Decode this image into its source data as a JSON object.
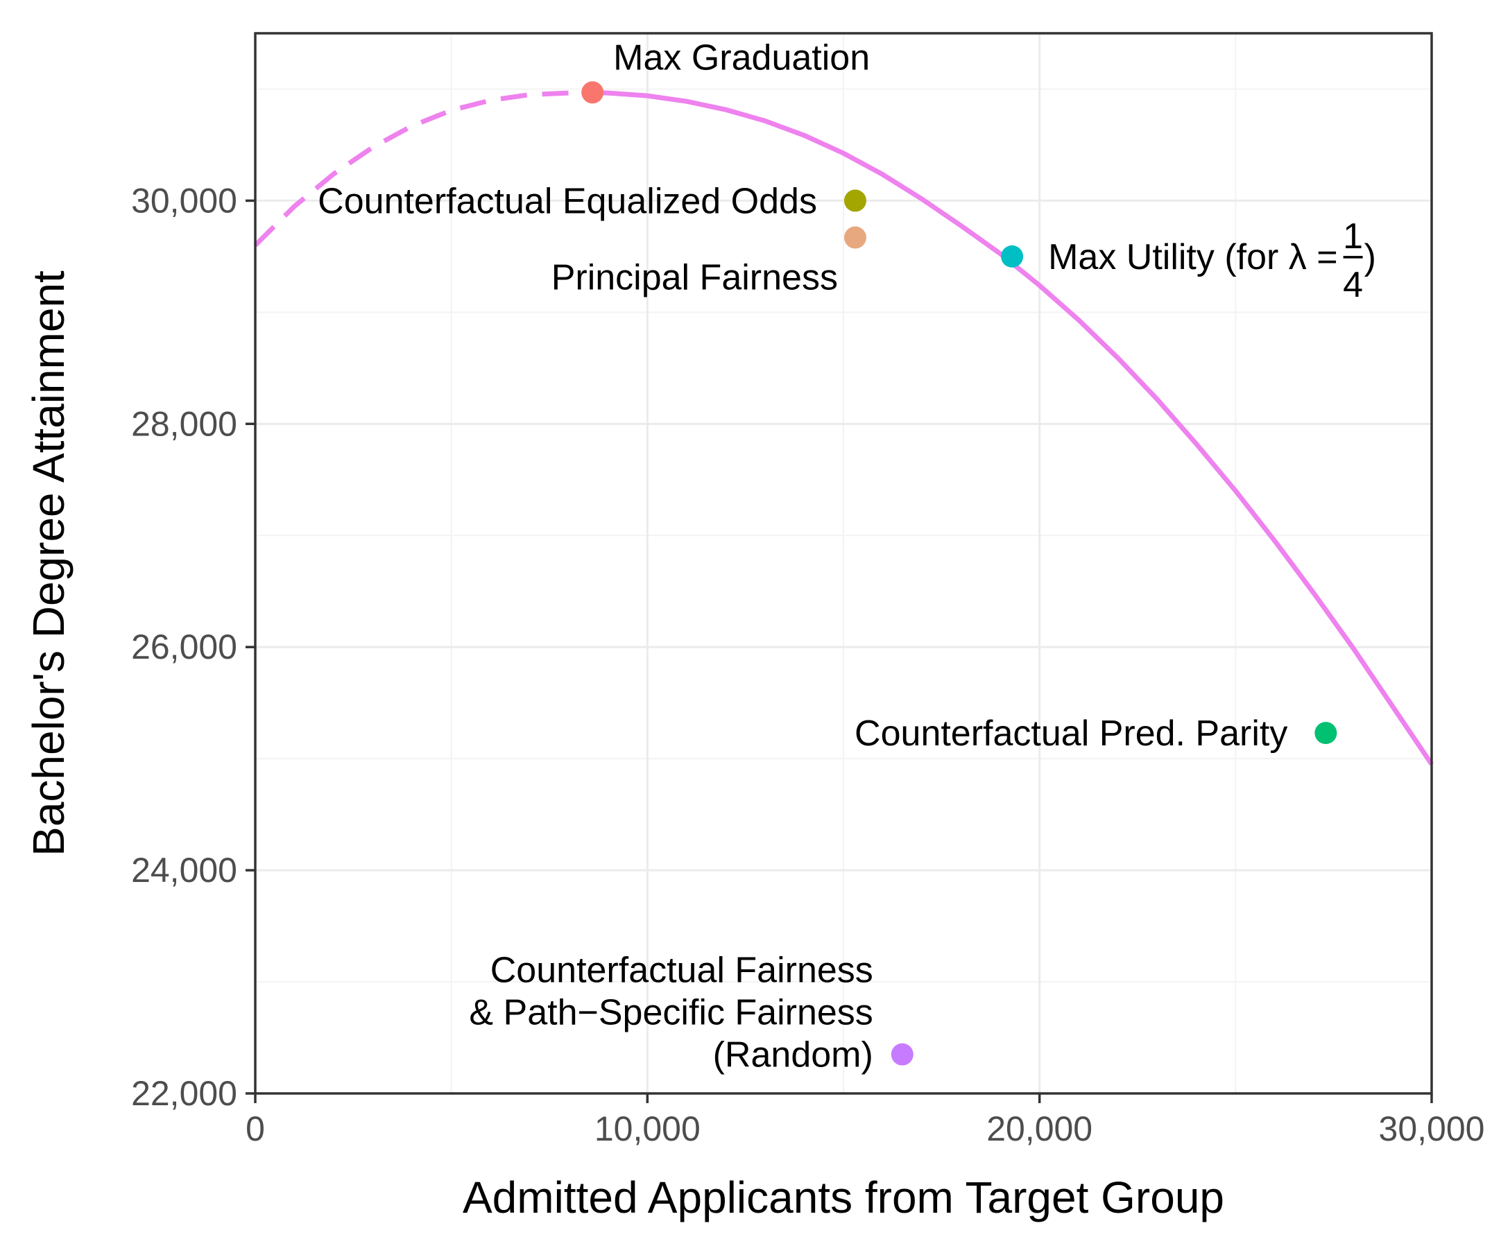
{
  "chart_data": {
    "type": "scatter",
    "xlabel": "Admitted Applicants from Target Group",
    "ylabel": "Bachelor's Degree Attainment",
    "xlim": [
      0,
      30000
    ],
    "ylim": [
      22000,
      31500
    ],
    "x_ticks": [
      0,
      10000,
      20000,
      30000
    ],
    "x_tick_labels": [
      "0",
      "10,000",
      "20,000",
      "30,000"
    ],
    "y_ticks": [
      22000,
      24000,
      26000,
      28000,
      30000
    ],
    "y_tick_labels": [
      "22,000",
      "24,000",
      "26,000",
      "28,000",
      "30,000"
    ],
    "grid": true,
    "legend": "none",
    "curve": {
      "color": "#ee82ee",
      "dashed_until_x": 8600,
      "points": [
        [
          0,
          29600
        ],
        [
          1000,
          29950
        ],
        [
          2000,
          30240
        ],
        [
          3000,
          30480
        ],
        [
          4000,
          30670
        ],
        [
          5000,
          30810
        ],
        [
          6000,
          30900
        ],
        [
          7000,
          30950
        ],
        [
          8000,
          30965
        ],
        [
          8600,
          30970
        ],
        [
          9000,
          30965
        ],
        [
          10000,
          30940
        ],
        [
          11000,
          30890
        ],
        [
          12000,
          30815
        ],
        [
          13000,
          30715
        ],
        [
          14000,
          30585
        ],
        [
          15000,
          30425
        ],
        [
          16000,
          30235
        ],
        [
          17000,
          30015
        ],
        [
          18000,
          29775
        ],
        [
          19000,
          29525
        ],
        [
          20000,
          29240
        ],
        [
          21000,
          28930
        ],
        [
          22000,
          28590
        ],
        [
          23000,
          28220
        ],
        [
          24000,
          27820
        ],
        [
          25000,
          27400
        ],
        [
          26000,
          26950
        ],
        [
          27000,
          26480
        ],
        [
          28000,
          25990
        ],
        [
          29000,
          25470
        ],
        [
          30000,
          24950
        ]
      ]
    },
    "points": [
      {
        "label": "Max Graduation",
        "x": 8600,
        "y": 30970,
        "color": "#f8766d",
        "label_pos": "above-right"
      },
      {
        "label": "Counterfactual Equalized Odds",
        "x": 15300,
        "y": 30000,
        "color": "#a3a500",
        "label_pos": "left"
      },
      {
        "label": "Principal Fairness",
        "x": 15300,
        "y": 29670,
        "color": "#e7a880",
        "label_pos": "left-below"
      },
      {
        "label": "Max Utility (for λ  =",
        "label_fraction": {
          "numerator": "1",
          "denominator": "4",
          "close": ")"
        },
        "x": 19300,
        "y": 29500,
        "color": "#00bfc4",
        "label_pos": "right"
      },
      {
        "label": "Counterfactual Pred. Parity",
        "x": 27300,
        "y": 25230,
        "color": "#00c071",
        "label_pos": "left"
      },
      {
        "label_lines": [
          "Counterfactual Fairness",
          "& Path−Specific Fairness",
          "(Random)"
        ],
        "x": 16500,
        "y": 22350,
        "color": "#c77cff",
        "label_pos": "left-multiline"
      }
    ]
  }
}
